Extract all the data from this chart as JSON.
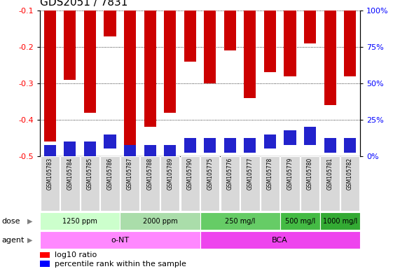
{
  "title": "GDS2051 / 7831",
  "samples": [
    "GSM105783",
    "GSM105784",
    "GSM105785",
    "GSM105786",
    "GSM105787",
    "GSM105788",
    "GSM105789",
    "GSM105790",
    "GSM105775",
    "GSM105776",
    "GSM105777",
    "GSM105778",
    "GSM105779",
    "GSM105780",
    "GSM105781",
    "GSM105782"
  ],
  "log10_ratio": [
    -0.46,
    -0.29,
    -0.38,
    -0.17,
    -0.47,
    -0.42,
    -0.38,
    -0.24,
    -0.3,
    -0.21,
    -0.34,
    -0.27,
    -0.28,
    -0.19,
    -0.36,
    -0.28
  ],
  "blue_bar_bottom": [
    -0.5,
    -0.5,
    -0.5,
    -0.48,
    -0.5,
    -0.5,
    -0.5,
    -0.49,
    -0.49,
    -0.49,
    -0.49,
    -0.48,
    -0.47,
    -0.47,
    -0.49,
    -0.49
  ],
  "blue_bar_height": [
    0.03,
    0.04,
    0.04,
    0.04,
    0.03,
    0.03,
    0.03,
    0.04,
    0.04,
    0.04,
    0.04,
    0.04,
    0.04,
    0.05,
    0.04,
    0.04
  ],
  "ylim_left": [
    -0.5,
    -0.1
  ],
  "ylim_right": [
    0,
    100
  ],
  "yticks_left": [
    -0.5,
    -0.4,
    -0.3,
    -0.2,
    -0.1
  ],
  "yticks_right": [
    0,
    25,
    50,
    75,
    100
  ],
  "ytick_labels_right": [
    "0%",
    "25%",
    "50%",
    "75%",
    "100%"
  ],
  "dose_groups": [
    {
      "label": "1250 ppm",
      "start": 0,
      "end": 4,
      "color": "#ccffcc"
    },
    {
      "label": "2000 ppm",
      "start": 4,
      "end": 8,
      "color": "#aaddaa"
    },
    {
      "label": "250 mg/l",
      "start": 8,
      "end": 12,
      "color": "#66cc66"
    },
    {
      "label": "500 mg/l",
      "start": 12,
      "end": 14,
      "color": "#44bb44"
    },
    {
      "label": "1000 mg/l",
      "start": 14,
      "end": 16,
      "color": "#33aa33"
    }
  ],
  "agent_groups": [
    {
      "label": "o-NT",
      "start": 0,
      "end": 8,
      "color": "#ff88ff"
    },
    {
      "label": "BCA",
      "start": 8,
      "end": 16,
      "color": "#ee44ee"
    }
  ],
  "bar_color": "#cc0000",
  "blue_color": "#2222cc",
  "bg_color": "#ffffff",
  "bar_width": 0.6,
  "label_fontsize": 8,
  "title_fontsize": 11
}
